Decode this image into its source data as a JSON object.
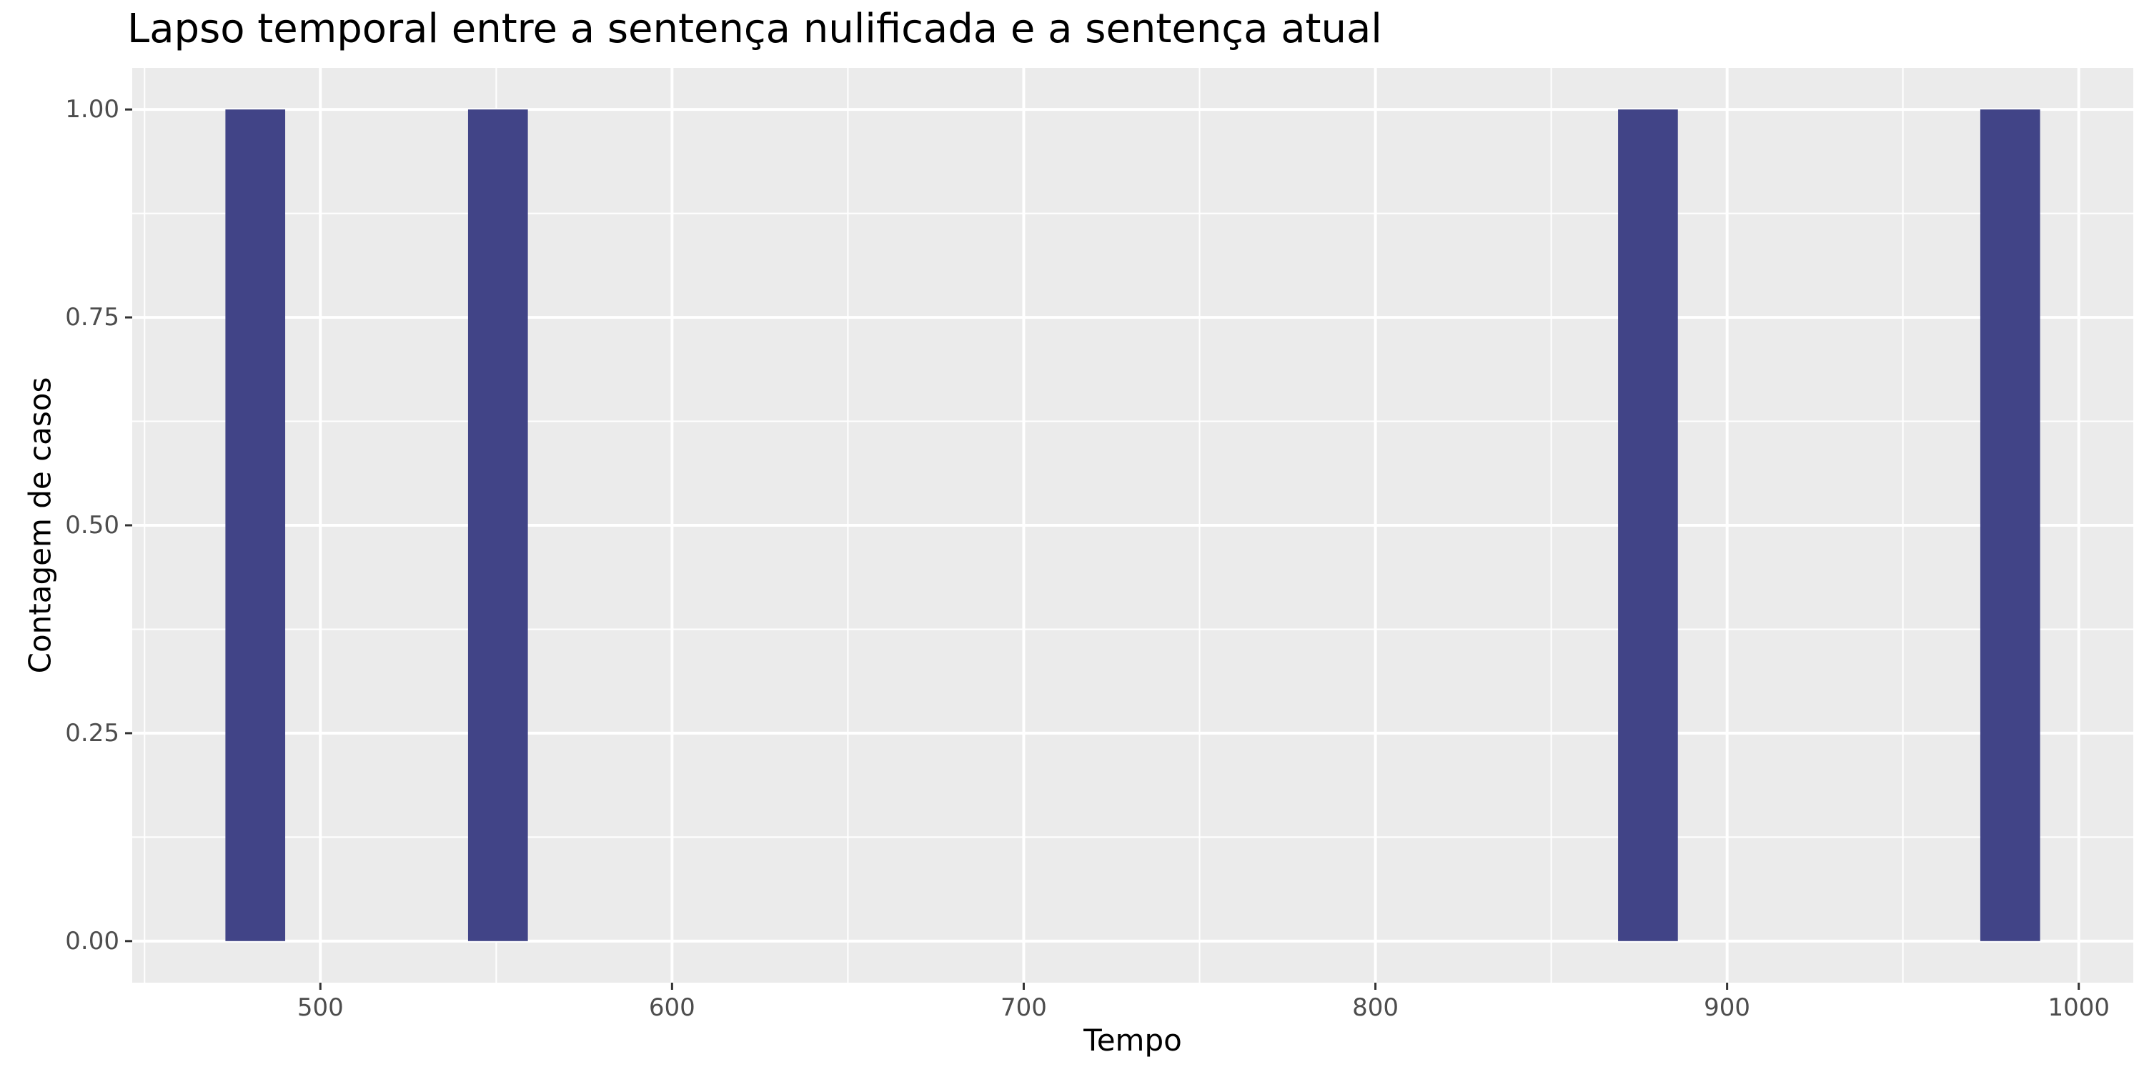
{
  "chart_data": {
    "type": "bar",
    "subtype": "histogram",
    "title": "Lapso temporal entre a sentença nulificada e a sentença atual",
    "xlabel": "Tempo",
    "ylabel": "Contagem de casos",
    "bins": [
      {
        "x_start": 473,
        "x_end": 490,
        "count": 1
      },
      {
        "x_start": 542,
        "x_end": 559,
        "count": 1
      },
      {
        "x_start": 869,
        "x_end": 886,
        "count": 1
      },
      {
        "x_start": 972,
        "x_end": 989,
        "count": 1
      }
    ],
    "xlim": [
      446.5,
      1015.5
    ],
    "ylim": [
      -0.05,
      1.05
    ],
    "x_ticks": [
      500,
      600,
      700,
      800,
      900,
      1000
    ],
    "x_tick_labels": [
      "500",
      "600",
      "700",
      "800",
      "900",
      "1000"
    ],
    "y_ticks": [
      0,
      0.25,
      0.5,
      0.75,
      1
    ],
    "y_tick_labels": [
      "0.00",
      "0.25",
      "0.50",
      "0.75",
      "1.00"
    ],
    "grid": true,
    "bar_color": "#414487",
    "panel_background": "#ebebeb",
    "grid_color": "#ffffff"
  }
}
